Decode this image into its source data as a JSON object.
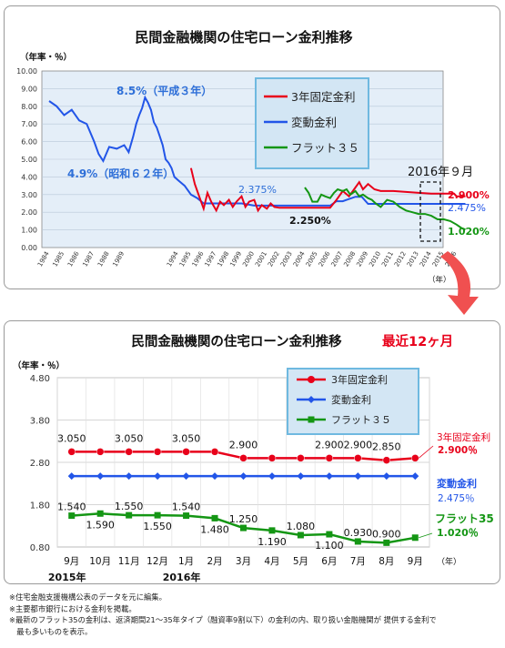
{
  "top_chart": {
    "title": "民間金融機関の住宅ローン金利推移",
    "unit_label": "（年率・％）",
    "x_unit": "（年）",
    "y_ticks": [
      "10.00",
      "9.00",
      "8.00",
      "7.00",
      "6.00",
      "5.00",
      "4.00",
      "3.00",
      "2.00",
      "1.00",
      "0.00"
    ],
    "year_labels": [
      "1984",
      "1985",
      "1986",
      "1987",
      "1988",
      "1989",
      "1994",
      "1995",
      "1996",
      "1997",
      "1998",
      "1999",
      "2000",
      "2001",
      "2002",
      "2003",
      "2004",
      "2005",
      "2006",
      "2007",
      "2008",
      "2009",
      "2010",
      "2011",
      "2012",
      "2013",
      "2014",
      "2015",
      "2016"
    ],
    "legend": [
      "3年固定金利",
      "変動金利",
      "フラット３５"
    ],
    "annotations": {
      "peak": "8.5%（平成３年）",
      "low": "4.9%（昭和６２年）",
      "variable": "2.375%",
      "fixed_low": "2.250%",
      "sep2016": "2016年９月"
    },
    "end_labels": {
      "fixed": "2.900%",
      "variable": "2.475%",
      "flat": "1.020%"
    },
    "colors": {
      "fixed": "#e8001a",
      "variable": "#2255e8",
      "flat": "#149614"
    }
  },
  "arrow_color": "#f05050",
  "chart_data": [
    {
      "type": "line",
      "title": "民間金融機関の住宅ローン金利推移",
      "ylabel": "（年率・％）",
      "xlabel": "（年）",
      "ylim": [
        0,
        10
      ],
      "series": [
        {
          "name": "変動金利",
          "x": [
            1984.0,
            1984.5,
            1985.0,
            1985.5,
            1986.0,
            1986.5,
            1987.0,
            1987.3,
            1987.6,
            1988.0,
            1988.5,
            1989.0,
            1989.3,
            1989.6,
            1989.8,
            1990.0,
            1990.3,
            1990.6,
            1990.9,
            1991.2,
            1991.5,
            1991.8,
            1992.1,
            1992.4,
            1992.7,
            1993.0,
            1993.3,
            1993.6,
            1994.0,
            1994.5,
            1995.0,
            1995.5,
            1996.0,
            1997.0,
            1998.0,
            1999.0,
            2000.0,
            2001.0,
            2002.0,
            2003.0,
            2004.0,
            2005.0,
            2006.0,
            2006.5,
            2007.0,
            2008.0,
            2008.5,
            2009.0,
            2010.0,
            2011.0,
            2012.0,
            2013.0,
            2014.0,
            2015.0,
            2016.0,
            2016.7
          ],
          "values": [
            8.3,
            8.0,
            7.5,
            7.8,
            7.2,
            7.0,
            6.0,
            5.3,
            4.9,
            5.7,
            5.6,
            5.8,
            5.4,
            6.3,
            7.0,
            7.5,
            7.9,
            8.5,
            8.2,
            7.8,
            7.1,
            6.8,
            6.3,
            5.8,
            5.0,
            4.8,
            4.5,
            4.0,
            3.8,
            3.5,
            3.0,
            2.8,
            2.5,
            2.5,
            2.5,
            2.5,
            2.375,
            2.375,
            2.375,
            2.375,
            2.375,
            2.375,
            2.375,
            2.625,
            2.625,
            2.875,
            2.875,
            2.475,
            2.475,
            2.475,
            2.475,
            2.475,
            2.475,
            2.475,
            2.475,
            2.475
          ]
        },
        {
          "name": "3年固定金利",
          "x": [
            1995.0,
            1995.3,
            1995.6,
            1996.0,
            1996.3,
            1996.6,
            1997.0,
            1997.3,
            1997.6,
            1998.0,
            1998.3,
            1998.6,
            1999.0,
            1999.3,
            1999.6,
            2000.0,
            2000.3,
            2000.6,
            2001.0,
            2001.3,
            2001.6,
            2002.0,
            2003.0,
            2004.0,
            2005.0,
            2006.0,
            2006.5,
            2007.0,
            2007.5,
            2008.0,
            2008.3,
            2008.6,
            2009.0,
            2009.5,
            2010.0,
            2011.0,
            2012.0,
            2013.0,
            2014.0,
            2015.0,
            2015.8,
            2016.0,
            2016.7
          ],
          "values": [
            4.5,
            3.6,
            3.0,
            2.2,
            3.1,
            2.6,
            2.1,
            2.6,
            2.4,
            2.7,
            2.3,
            2.6,
            2.9,
            2.3,
            2.6,
            2.7,
            2.1,
            2.4,
            2.2,
            2.5,
            2.3,
            2.25,
            2.25,
            2.25,
            2.25,
            2.25,
            2.7,
            3.2,
            2.9,
            3.4,
            3.7,
            3.3,
            3.6,
            3.3,
            3.2,
            3.2,
            3.15,
            3.1,
            3.05,
            3.05,
            3.05,
            2.9,
            2.9
          ]
        },
        {
          "name": "フラット３５",
          "x": [
            2004.0,
            2004.3,
            2004.6,
            2005.0,
            2005.3,
            2005.6,
            2006.0,
            2006.3,
            2006.6,
            2007.0,
            2007.3,
            2007.6,
            2008.0,
            2008.3,
            2008.6,
            2009.0,
            2009.3,
            2009.6,
            2010.0,
            2010.5,
            2011.0,
            2011.5,
            2012.0,
            2012.5,
            2013.0,
            2013.5,
            2014.0,
            2014.5,
            2015.0,
            2015.5,
            2016.0,
            2016.4,
            2016.7
          ],
          "values": [
            3.4,
            3.1,
            2.6,
            2.6,
            3.0,
            2.9,
            2.8,
            3.1,
            3.3,
            3.2,
            3.3,
            3.0,
            3.2,
            2.9,
            3.0,
            2.8,
            2.7,
            2.5,
            2.3,
            2.7,
            2.6,
            2.3,
            2.1,
            2.0,
            1.9,
            1.9,
            1.8,
            1.6,
            1.6,
            1.5,
            1.3,
            1.1,
            1.02
          ]
        }
      ]
    },
    {
      "type": "line",
      "title": "民間金融機関の住宅ローン金利推移",
      "subtitle": "最近12ヶ月",
      "ylabel": "（年率・％）",
      "xlabel": "（年）",
      "ylim": [
        0.8,
        4.8
      ],
      "y_ticks": [
        "4.80",
        "3.80",
        "2.80",
        "1.80",
        "0.80"
      ],
      "categories": [
        "9月",
        "10月",
        "11月",
        "12月",
        "1月",
        "2月",
        "3月",
        "4月",
        "5月",
        "6月",
        "7月",
        "8月",
        "9月"
      ],
      "year_labels": [
        {
          "label": "2015年",
          "index": 0
        },
        {
          "label": "2016年",
          "index": 4
        }
      ],
      "series": [
        {
          "name": "3年固定金利",
          "values": [
            3.05,
            3.05,
            3.05,
            3.05,
            3.05,
            3.05,
            2.9,
            2.9,
            2.9,
            2.9,
            2.9,
            2.85,
            2.9
          ],
          "labels": [
            "3.050",
            "",
            "3.050",
            "",
            "3.050",
            "",
            "2.900",
            "",
            "",
            "2.900",
            "2.900",
            "2.850",
            ""
          ]
        },
        {
          "name": "変動金利",
          "values": [
            2.475,
            2.475,
            2.475,
            2.475,
            2.475,
            2.475,
            2.475,
            2.475,
            2.475,
            2.475,
            2.475,
            2.475,
            2.475
          ],
          "labels": []
        },
        {
          "name": "フラット３５",
          "values": [
            1.54,
            1.59,
            1.55,
            1.55,
            1.54,
            1.48,
            1.25,
            1.19,
            1.08,
            1.1,
            0.93,
            0.9,
            1.02
          ],
          "labels": [
            "1.540",
            "1.590",
            "1.550",
            "1.550",
            "1.540",
            "1.480",
            "1.250",
            "1.190",
            "1.080",
            "1.100",
            "0.930",
            "0.900",
            ""
          ]
        }
      ],
      "end_labels": [
        {
          "name": "3年固定金利",
          "value": "2.900％",
          "color": "#e8001a"
        },
        {
          "name": "変動金利",
          "value": "2.475％",
          "color": "#2255e8"
        },
        {
          "name": "フラット35",
          "value": "1.020％",
          "color": "#149614"
        }
      ],
      "colors": {
        "fixed": "#e8001a",
        "variable": "#2255e8",
        "flat": "#149614"
      }
    }
  ],
  "notes": [
    "※住宅金融支援機構公表のデータを元に編集。",
    "※主要都市銀行における金利を掲載。",
    "※最新のフラット35の金利は、返済期間21～35年タイプ（融資率9割以下）の金利の内、取り扱い金融機関が 提供する金利で",
    "　最も多いものを表示。"
  ]
}
